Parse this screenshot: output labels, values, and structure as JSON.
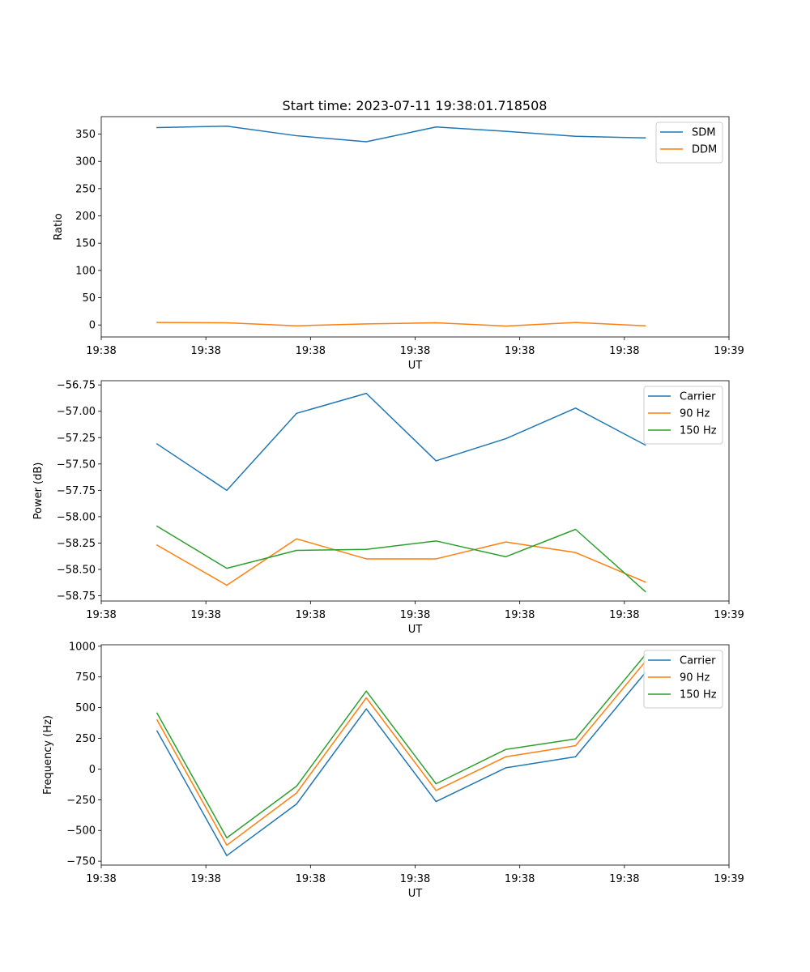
{
  "chart_data": [
    {
      "type": "line",
      "title": "Start time: 2023-07-11 19:38:01.718508",
      "xlabel": "UT",
      "ylabel": "Ratio",
      "x": [
        1,
        2,
        3,
        4,
        5,
        6,
        7,
        8
      ],
      "xlim": [
        0.2,
        9.2
      ],
      "x_ticks": [
        0.2,
        1.7,
        3.2,
        4.7,
        6.2,
        7.7,
        9.2
      ],
      "x_tick_labels": [
        "19:38",
        "19:38",
        "19:38",
        "19:38",
        "19:38",
        "19:38",
        "19:39"
      ],
      "ylim": [
        -22,
        382
      ],
      "y_ticks": [
        0,
        50,
        100,
        150,
        200,
        250,
        300,
        350
      ],
      "y_tick_labels": [
        "0",
        "50",
        "100",
        "150",
        "200",
        "250",
        "300",
        "350"
      ],
      "legend_position": "top-right",
      "series": [
        {
          "name": "SDM",
          "color": "#1f77b4",
          "values": [
            362,
            364.5,
            347,
            336,
            363,
            355,
            346,
            343
          ]
        },
        {
          "name": "DDM",
          "color": "#ff7f0e",
          "values": [
            4.5,
            4,
            -1.5,
            2,
            4,
            -2,
            4.5,
            -1.5
          ]
        }
      ]
    },
    {
      "type": "line",
      "xlabel": "UT",
      "ylabel": "Power (dB)",
      "x": [
        1,
        2,
        3,
        4,
        5,
        6,
        7,
        8
      ],
      "xlim": [
        0.2,
        9.2
      ],
      "x_ticks": [
        0.2,
        1.7,
        3.2,
        4.7,
        6.2,
        7.7,
        9.2
      ],
      "x_tick_labels": [
        "19:38",
        "19:38",
        "19:38",
        "19:38",
        "19:38",
        "19:38",
        "19:39"
      ],
      "ylim": [
        -58.8,
        -56.71
      ],
      "y_ticks": [
        -58.75,
        -58.5,
        -58.25,
        -58.0,
        -57.75,
        -57.5,
        -57.25,
        -57.0,
        -56.75
      ],
      "y_tick_labels": [
        "−58.75",
        "−58.50",
        "−58.25",
        "−58.00",
        "−57.75",
        "−57.50",
        "−57.25",
        "−57.00",
        "−56.75"
      ],
      "legend_position": "top-right",
      "series": [
        {
          "name": "Carrier",
          "color": "#1f77b4",
          "values": [
            -57.31,
            -57.75,
            -57.02,
            -56.83,
            -57.47,
            -57.26,
            -56.97,
            -57.32
          ]
        },
        {
          "name": "90 Hz",
          "color": "#ff7f0e",
          "values": [
            -58.27,
            -58.65,
            -58.21,
            -58.4,
            -58.4,
            -58.24,
            -58.34,
            -58.62
          ]
        },
        {
          "name": "150 Hz",
          "color": "#2ca02c",
          "values": [
            -58.09,
            -58.49,
            -58.32,
            -58.31,
            -58.23,
            -58.38,
            -58.12,
            -58.71
          ]
        }
      ]
    },
    {
      "type": "line",
      "xlabel": "UT",
      "ylabel": "Frequency (Hz)",
      "x": [
        1,
        2,
        3,
        4,
        5,
        6,
        7,
        8
      ],
      "xlim": [
        0.2,
        9.2
      ],
      "x_ticks": [
        0.2,
        1.7,
        3.2,
        4.7,
        6.2,
        7.7,
        9.2
      ],
      "x_tick_labels": [
        "19:38",
        "19:38",
        "19:38",
        "19:38",
        "19:38",
        "19:38",
        "19:39"
      ],
      "ylim": [
        -782,
        1012
      ],
      "y_ticks": [
        -750,
        -500,
        -250,
        0,
        250,
        500,
        750,
        1000
      ],
      "y_tick_labels": [
        "−750",
        "−500",
        "−250",
        "0",
        "250",
        "500",
        "750",
        "1000"
      ],
      "legend_position": "top-right",
      "series": [
        {
          "name": "Carrier",
          "color": "#1f77b4",
          "values": [
            310,
            -705,
            -285,
            490,
            -265,
            10,
            100,
            785
          ]
        },
        {
          "name": "90 Hz",
          "color": "#ff7f0e",
          "values": [
            400,
            -620,
            -195,
            580,
            -175,
            100,
            190,
            875
          ]
        },
        {
          "name": "150 Hz",
          "color": "#2ca02c",
          "values": [
            455,
            -560,
            -140,
            635,
            -120,
            160,
            245,
            930
          ]
        }
      ]
    }
  ]
}
